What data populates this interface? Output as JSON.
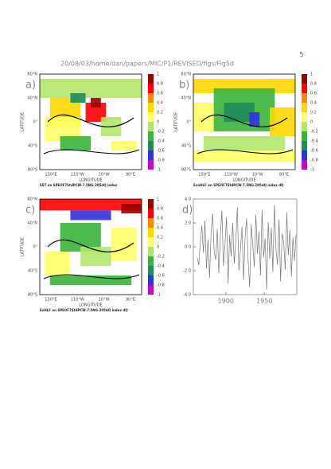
{
  "page_number": "5",
  "header": "20/08/03/home/dan/papers/MIC/P1/REVISED/figs/Fig5d",
  "maps": [
    {
      "label": "a)",
      "caption": "SST on SPEOF7StdPCW-7.5NG-205dQ index",
      "x_axis_label": "LONGITUDE",
      "y_axis_label": "LATITUDE",
      "yticks": [
        "80°N",
        "40°N",
        "0°",
        "40°S",
        "80°S"
      ],
      "xticks": [
        "150°E",
        "110°W",
        "10°W",
        "90°E"
      ]
    },
    {
      "label": "b)",
      "caption": "ExnHLF on SPEOF7StdPCW-7.5NG-205dQ index dQ",
      "x_axis_label": "LONGITUDE",
      "y_axis_label": "LATITUDE",
      "yticks": [
        "80°N",
        "40°N",
        "0°",
        "40°S",
        "80°S"
      ],
      "xticks": [
        "150°E",
        "110°W",
        "10°W",
        "80°E"
      ]
    },
    {
      "label": "c)",
      "caption": "ExHLF on SPEOF7StdPCW-7.5NG-205dQ index dQ",
      "x_axis_label": "LONGITUDE",
      "y_axis_label": "LATITUDE",
      "yticks": [
        "80°N",
        "40°N",
        "0°",
        "40°S",
        "80°S"
      ],
      "xticks": [
        "150°E",
        "110°W",
        "10°W",
        "90°E"
      ]
    }
  ],
  "colorbar": {
    "levels": [
      1,
      0.8,
      0.6,
      0.4,
      0.2,
      0,
      -0.2,
      -0.4,
      -0.6,
      -0.8,
      -1
    ],
    "colors": [
      "#9b0000",
      "#ff0000",
      "#ff8c00",
      "#ffd700",
      "#ffff66",
      "#b4e66e",
      "#3cb43c",
      "#1e8c5a",
      "#3232dc",
      "#c800c8"
    ]
  },
  "chart_data": {
    "type": "line",
    "label": "d)",
    "color": "#777777",
    "x": [
      1863,
      1865,
      1867,
      1869,
      1871,
      1873,
      1875,
      1877,
      1879,
      1881,
      1883,
      1885,
      1887,
      1889,
      1891,
      1893,
      1895,
      1897,
      1899,
      1901,
      1903,
      1905,
      1907,
      1909,
      1911,
      1913,
      1915,
      1917,
      1919,
      1921,
      1923,
      1925,
      1927,
      1929,
      1931,
      1933,
      1935,
      1937,
      1939,
      1941,
      1943,
      1945,
      1947,
      1949,
      1951,
      1953,
      1955,
      1957,
      1959,
      1961,
      1963,
      1965,
      1967,
      1969,
      1971,
      1973,
      1975,
      1977,
      1979,
      1981,
      1983,
      1985,
      1987,
      1989,
      1991
    ],
    "values": [
      -0.9,
      -1.5,
      0.3,
      1.8,
      -0.5,
      2.2,
      -1.8,
      0.6,
      -2.6,
      1.2,
      2.8,
      -0.4,
      -1.1,
      1.5,
      -2.2,
      0.9,
      3.0,
      -1.6,
      0.2,
      2.5,
      -3.1,
      1.0,
      -0.8,
      2.0,
      -1.4,
      0.5,
      3.3,
      -2.0,
      -0.3,
      1.7,
      -2.8,
      0.8,
      2.4,
      -1.2,
      -3.4,
      1.9,
      0.1,
      -1.7,
      2.7,
      -0.6,
      1.3,
      -2.4,
      3.1,
      -0.9,
      0.7,
      -3.6,
      2.1,
      -1.0,
      1.6,
      -2.1,
      3.5,
      -0.2,
      -1.5,
      2.3,
      -2.9,
      1.1,
      0.4,
      -1.9,
      2.9,
      -0.7,
      1.4,
      -2.5,
      0.8,
      -1.2,
      1.0
    ],
    "xlim": [
      1858,
      1992
    ],
    "ylim": [
      -4,
      4
    ],
    "xticks": [
      1900,
      1950
    ],
    "yticks": [
      {
        "value": 4,
        "label": "4.0"
      },
      {
        "value": 2,
        "label": "2.0"
      },
      {
        "value": 0,
        "label": "0.0"
      },
      {
        "value": -2,
        "label": "-2.0"
      },
      {
        "value": -4,
        "label": "-4.0"
      }
    ]
  }
}
